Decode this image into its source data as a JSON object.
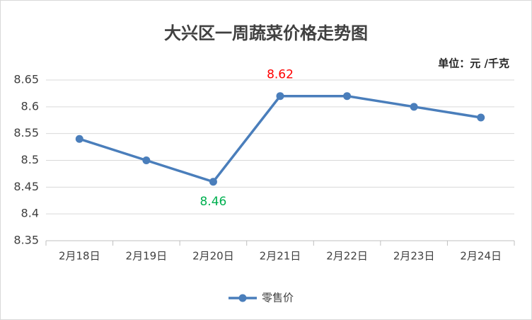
{
  "chart_data": {
    "type": "line",
    "title": "大兴区一周蔬菜价格走势图",
    "annotation": "单位：元 /千克",
    "categories": [
      "2月18日",
      "2月19日",
      "2月20日",
      "2月21日",
      "2月22日",
      "2月23日",
      "2月24日"
    ],
    "series": [
      {
        "name": "零售价",
        "color": "#4a7ebb",
        "values": [
          8.54,
          8.5,
          8.46,
          8.62,
          8.62,
          8.6,
          8.58
        ]
      }
    ],
    "labeled_points": [
      {
        "index": 2,
        "color": "#00b050"
      },
      {
        "index": 3,
        "color": "#ff0000"
      }
    ],
    "ylim": [
      8.35,
      8.65
    ],
    "yticks": [
      8.35,
      8.4,
      8.45,
      8.5,
      8.55,
      8.6,
      8.65
    ],
    "grid": true,
    "legend": "bottom"
  }
}
